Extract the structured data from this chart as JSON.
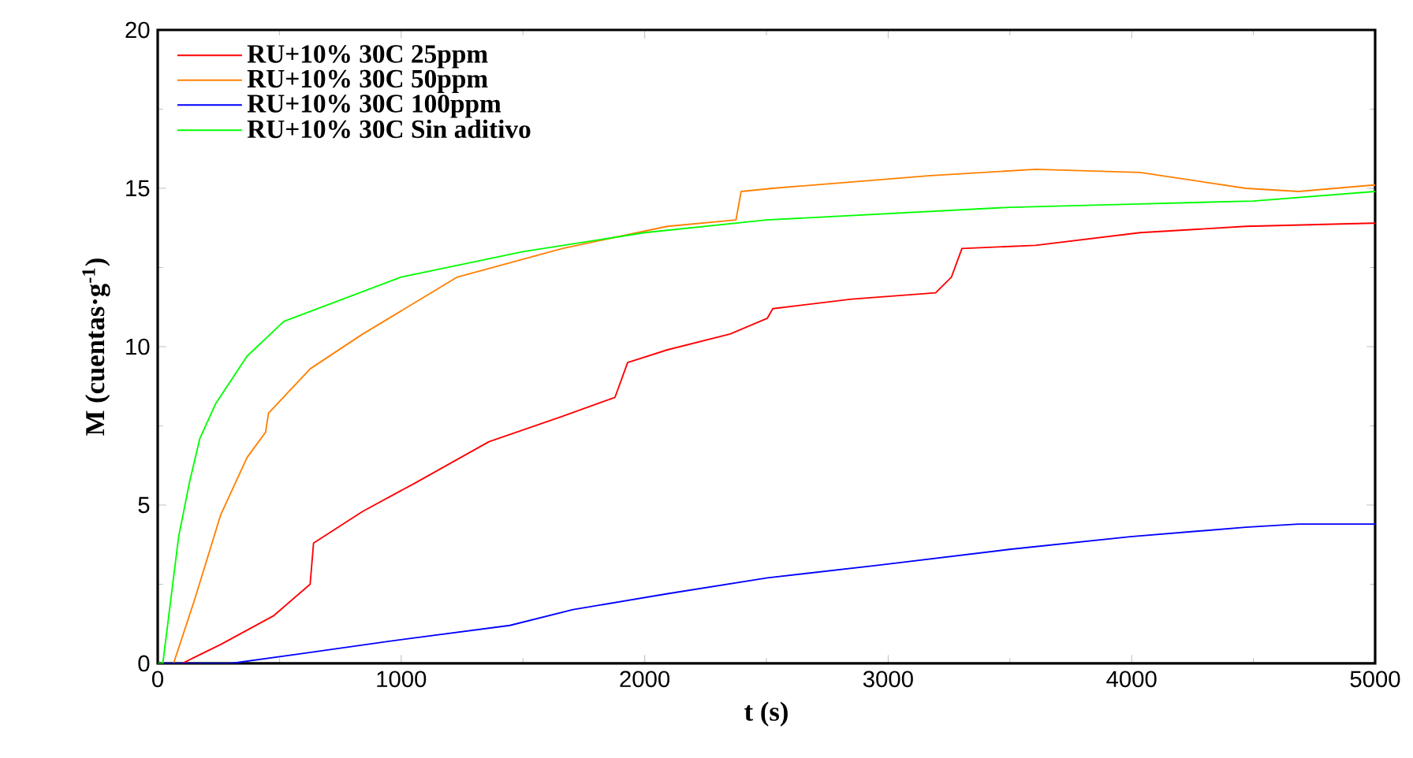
{
  "chart_data": {
    "type": "line",
    "xlabel": "t (s)",
    "ylabel": "M (cuentas·g$^{-1}$)",
    "xlim": [
      0,
      5000
    ],
    "ylim": [
      0,
      20
    ],
    "xticks": [
      0,
      1000,
      2000,
      3000,
      4000,
      5000
    ],
    "yticks": [
      0,
      5,
      10,
      15,
      20
    ],
    "legend": "top left",
    "series": [
      {
        "name": "RU+10% 30C 25ppm",
        "color": "#ff0000",
        "x": [
          0,
          100,
          259,
          475,
          626,
          640,
          842,
          1058,
          1360,
          1662,
          1878,
          1930,
          2093,
          2351,
          2504,
          2526,
          2850,
          3195,
          3260,
          3303,
          3605,
          4035,
          4469,
          4987,
          5000
        ],
        "values": [
          0,
          0,
          0.6,
          1.5,
          2.5,
          3.8,
          4.8,
          5.7,
          7.0,
          7.8,
          8.4,
          9.5,
          9.9,
          10.4,
          10.9,
          11.2,
          11.5,
          11.7,
          12.2,
          13.1,
          13.2,
          13.6,
          13.8,
          13.9,
          13.9
        ]
      },
      {
        "name": "RU+10% 30C 50ppm",
        "color": "#ff8000",
        "x": [
          0,
          65,
          151,
          259,
          367,
          443,
          455,
          626,
          842,
          907,
          1231,
          1662,
          2093,
          2375,
          2396,
          2526,
          3174,
          3605,
          4035,
          4469,
          4685,
          4987,
          5000
        ],
        "values": [
          0,
          0,
          2.0,
          4.7,
          6.5,
          7.3,
          7.9,
          9.3,
          10.4,
          10.7,
          12.2,
          13.1,
          13.8,
          14.0,
          14.9,
          15.0,
          15.4,
          15.6,
          15.5,
          15.0,
          14.9,
          15.1,
          15.1
        ]
      },
      {
        "name": "RU+10% 30C 100ppm",
        "color": "#0000ff",
        "x": [
          0,
          300,
          583,
          950,
          1446,
          1706,
          2094,
          2504,
          2958,
          3497,
          3994,
          4469,
          4685,
          4987,
          5000
        ],
        "values": [
          0,
          0,
          0.3,
          0.7,
          1.2,
          1.7,
          2.2,
          2.7,
          3.1,
          3.6,
          4.0,
          4.3,
          4.4,
          4.4,
          4.4
        ]
      },
      {
        "name": "RU+10% 30C Sin aditivo",
        "color": "#00ff00",
        "x": [
          0,
          21,
          86,
          130,
          173,
          238,
          367,
          518,
          1000,
          1500,
          2000,
          2500,
          3000,
          3500,
          4000,
          4500,
          5000
        ],
        "values": [
          0,
          0,
          4.0,
          5.7,
          7.1,
          8.2,
          9.7,
          10.8,
          12.2,
          13.0,
          13.6,
          14.0,
          14.2,
          14.4,
          14.5,
          14.6,
          14.9
        ]
      }
    ]
  }
}
